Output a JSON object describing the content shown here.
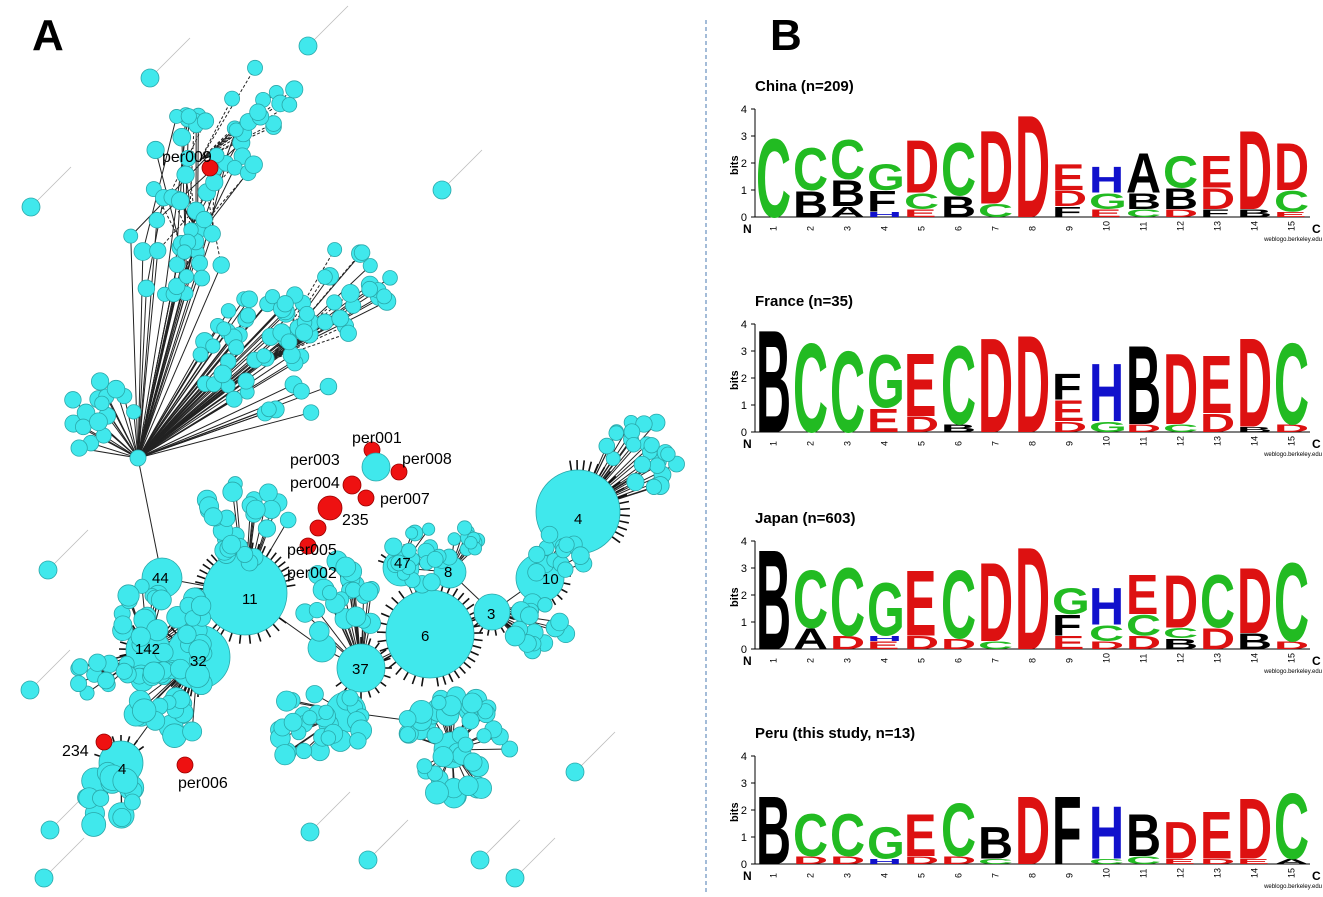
{
  "panels": {
    "a_letter": "A",
    "b_letter": "B"
  },
  "network": {
    "node_color": "#40e8ec",
    "highlight_color": "#ee1111",
    "hub_counts": [
      "11",
      "6",
      "32",
      "37",
      "142",
      "44",
      "47",
      "8",
      "3",
      "10",
      "4",
      "4",
      "235",
      "234"
    ],
    "highlighted_labels": [
      "per009",
      "per001",
      "per003",
      "per008",
      "per004",
      "per007",
      "per005",
      "per002",
      "per006"
    ]
  },
  "logos": {
    "bits_label": "bits",
    "n_label": "N",
    "c_label": "C",
    "credit": "weblogo.berkeley.edu",
    "y_ticks": [
      "0",
      "1",
      "2",
      "3",
      "4"
    ],
    "positions": [
      "1",
      "2",
      "3",
      "4",
      "5",
      "6",
      "7",
      "8",
      "9",
      "10",
      "11",
      "12",
      "13",
      "14",
      "15"
    ],
    "colors": {
      "A": "#000000",
      "B": "#000000",
      "C": "#22bb22",
      "D": "#dd1111",
      "E": "#dd1111",
      "F": "#000000",
      "G": "#22bb22",
      "H": "#1111cc"
    },
    "items": [
      {
        "title": "China (n=209)",
        "columns": [
          [
            [
              "C",
              3.0
            ]
          ],
          [
            [
              "C",
              1.6
            ],
            [
              "B",
              1.0
            ]
          ],
          [
            [
              "C",
              1.5
            ],
            [
              "B",
              1.0
            ],
            [
              "A",
              0.4
            ]
          ],
          [
            [
              "G",
              1.0
            ],
            [
              "F",
              0.8
            ],
            [
              "H",
              0.2
            ]
          ],
          [
            [
              "D",
              2.0
            ],
            [
              "C",
              0.6
            ],
            [
              "E",
              0.3
            ]
          ],
          [
            [
              "C",
              2.0
            ],
            [
              "B",
              0.8
            ]
          ],
          [
            [
              "D",
              2.8
            ],
            [
              "C",
              0.5
            ]
          ],
          [
            [
              "D",
              3.9
            ]
          ],
          [
            [
              "E",
              1.0
            ],
            [
              "D",
              0.6
            ],
            [
              "F",
              0.4
            ]
          ],
          [
            [
              "H",
              1.0
            ],
            [
              "G",
              0.6
            ],
            [
              "E",
              0.3
            ]
          ],
          [
            [
              "A",
              1.5
            ],
            [
              "B",
              0.6
            ],
            [
              "C",
              0.3
            ]
          ],
          [
            [
              "C",
              1.2
            ],
            [
              "B",
              0.8
            ],
            [
              "D",
              0.3
            ]
          ],
          [
            [
              "E",
              1.2
            ],
            [
              "D",
              0.8
            ],
            [
              "F",
              0.3
            ]
          ],
          [
            [
              "D",
              3.0
            ],
            [
              "B",
              0.3
            ]
          ],
          [
            [
              "D",
              1.8
            ],
            [
              "C",
              0.8
            ],
            [
              "E",
              0.2
            ]
          ]
        ]
      },
      {
        "title": "France (n=35)",
        "columns": [
          [
            [
              "B",
              3.9
            ]
          ],
          [
            [
              "C",
              3.4
            ]
          ],
          [
            [
              "C",
              3.1
            ]
          ],
          [
            [
              "G",
              2.0
            ],
            [
              "E",
              0.9
            ]
          ],
          [
            [
              "E",
              2.4
            ],
            [
              "D",
              0.6
            ]
          ],
          [
            [
              "C",
              3.0
            ],
            [
              "B",
              0.3
            ]
          ],
          [
            [
              "D",
              3.6
            ]
          ],
          [
            [
              "D",
              3.7
            ]
          ],
          [
            [
              "F",
              1.0
            ],
            [
              "E",
              0.8
            ],
            [
              "D",
              0.4
            ]
          ],
          [
            [
              "H",
              2.2
            ],
            [
              "G",
              0.4
            ]
          ],
          [
            [
              "B",
              3.0
            ],
            [
              "D",
              0.3
            ]
          ],
          [
            [
              "D",
              2.7
            ],
            [
              "C",
              0.3
            ]
          ],
          [
            [
              "E",
              2.2
            ],
            [
              "D",
              0.7
            ]
          ],
          [
            [
              "D",
              3.4
            ],
            [
              "B",
              0.2
            ]
          ],
          [
            [
              "C",
              3.1
            ],
            [
              "D",
              0.3
            ]
          ]
        ]
      },
      {
        "title": "Japan (n=603)",
        "columns": [
          [
            [
              "B",
              3.8
            ]
          ],
          [
            [
              "C",
              2.2
            ],
            [
              "A",
              0.8
            ]
          ],
          [
            [
              "C",
              2.6
            ],
            [
              "D",
              0.5
            ]
          ],
          [
            [
              "G",
              2.0
            ],
            [
              "H",
              0.2
            ],
            [
              "E",
              0.3
            ]
          ],
          [
            [
              "E",
              2.5
            ],
            [
              "D",
              0.5
            ]
          ],
          [
            [
              "C",
              2.6
            ],
            [
              "D",
              0.4
            ]
          ],
          [
            [
              "D",
              3.0
            ],
            [
              "C",
              0.3
            ]
          ],
          [
            [
              "D",
              3.9
            ]
          ],
          [
            [
              "G",
              1.0
            ],
            [
              "F",
              0.8
            ],
            [
              "E",
              0.5
            ]
          ],
          [
            [
              "H",
              1.4
            ],
            [
              "C",
              0.6
            ],
            [
              "D",
              0.3
            ]
          ],
          [
            [
              "E",
              1.5
            ],
            [
              "C",
              0.8
            ],
            [
              "D",
              0.5
            ]
          ],
          [
            [
              "D",
              2.0
            ],
            [
              "C",
              0.4
            ],
            [
              "B",
              0.4
            ]
          ],
          [
            [
              "C",
              2.0
            ],
            [
              "D",
              0.8
            ]
          ],
          [
            [
              "D",
              2.5
            ],
            [
              "B",
              0.6
            ]
          ],
          [
            [
              "C",
              3.0
            ],
            [
              "D",
              0.3
            ]
          ]
        ]
      },
      {
        "title": "Peru (this study, n=13)",
        "columns": [
          [
            [
              "B",
              2.6
            ]
          ],
          [
            [
              "C",
              1.6
            ],
            [
              "D",
              0.3
            ]
          ],
          [
            [
              "C",
              1.6
            ],
            [
              "D",
              0.3
            ]
          ],
          [
            [
              "G",
              1.2
            ],
            [
              "H",
              0.2
            ]
          ],
          [
            [
              "E",
              1.6
            ],
            [
              "D",
              0.3
            ]
          ],
          [
            [
              "C",
              2.0
            ],
            [
              "D",
              0.3
            ]
          ],
          [
            [
              "B",
              1.2
            ],
            [
              "C",
              0.2
            ]
          ],
          [
            [
              "D",
              2.6
            ]
          ],
          [
            [
              "F",
              2.6
            ]
          ],
          [
            [
              "H",
              2.0
            ],
            [
              "C",
              0.2
            ]
          ],
          [
            [
              "B",
              1.6
            ],
            [
              "C",
              0.3
            ]
          ],
          [
            [
              "D",
              1.4
            ],
            [
              "E",
              0.2
            ]
          ],
          [
            [
              "E",
              1.8
            ],
            [
              "D",
              0.2
            ]
          ],
          [
            [
              "D",
              2.3
            ],
            [
              "E",
              0.2
            ]
          ],
          [
            [
              "C",
              2.5
            ],
            [
              "A",
              0.2
            ]
          ]
        ]
      }
    ]
  }
}
